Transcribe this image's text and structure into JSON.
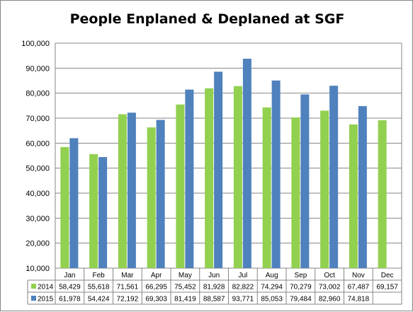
{
  "chart_data": {
    "type": "bar",
    "title": "People Enplaned & Deplaned at SGF",
    "xlabel": "",
    "ylabel": "",
    "ylim": [
      10000,
      100000
    ],
    "ytick_step": 10000,
    "yticks": [
      "10,000",
      "20,000",
      "30,000",
      "40,000",
      "50,000",
      "60,000",
      "70,000",
      "80,000",
      "90,000",
      "100,000"
    ],
    "grid": true,
    "legend": "data-table",
    "categories": [
      "Jan",
      "Feb",
      "Mar",
      "Apr",
      "May",
      "Jun",
      "Jul",
      "Aug",
      "Sep",
      "Oct",
      "Nov",
      "Dec"
    ],
    "series": [
      {
        "name": "2014",
        "color": "#92d050",
        "values": [
          58429,
          55618,
          71561,
          66295,
          75452,
          81928,
          82822,
          74294,
          70279,
          73002,
          67487,
          69157
        ],
        "labels": [
          "58,429",
          "55,618",
          "71,561",
          "66,295",
          "75,452",
          "81,928",
          "82,822",
          "74,294",
          "70,279",
          "73,002",
          "67,487",
          "69,157"
        ]
      },
      {
        "name": "2015",
        "color": "#4f81bd",
        "values": [
          61978,
          54424,
          72192,
          69303,
          81419,
          88587,
          93771,
          85053,
          79484,
          82960,
          74818,
          null
        ],
        "labels": [
          "61,978",
          "54,424",
          "72,192",
          "69,303",
          "81,419",
          "88,587",
          "93,771",
          "85,053",
          "79,484",
          "82,960",
          "74,818",
          ""
        ]
      }
    ]
  }
}
